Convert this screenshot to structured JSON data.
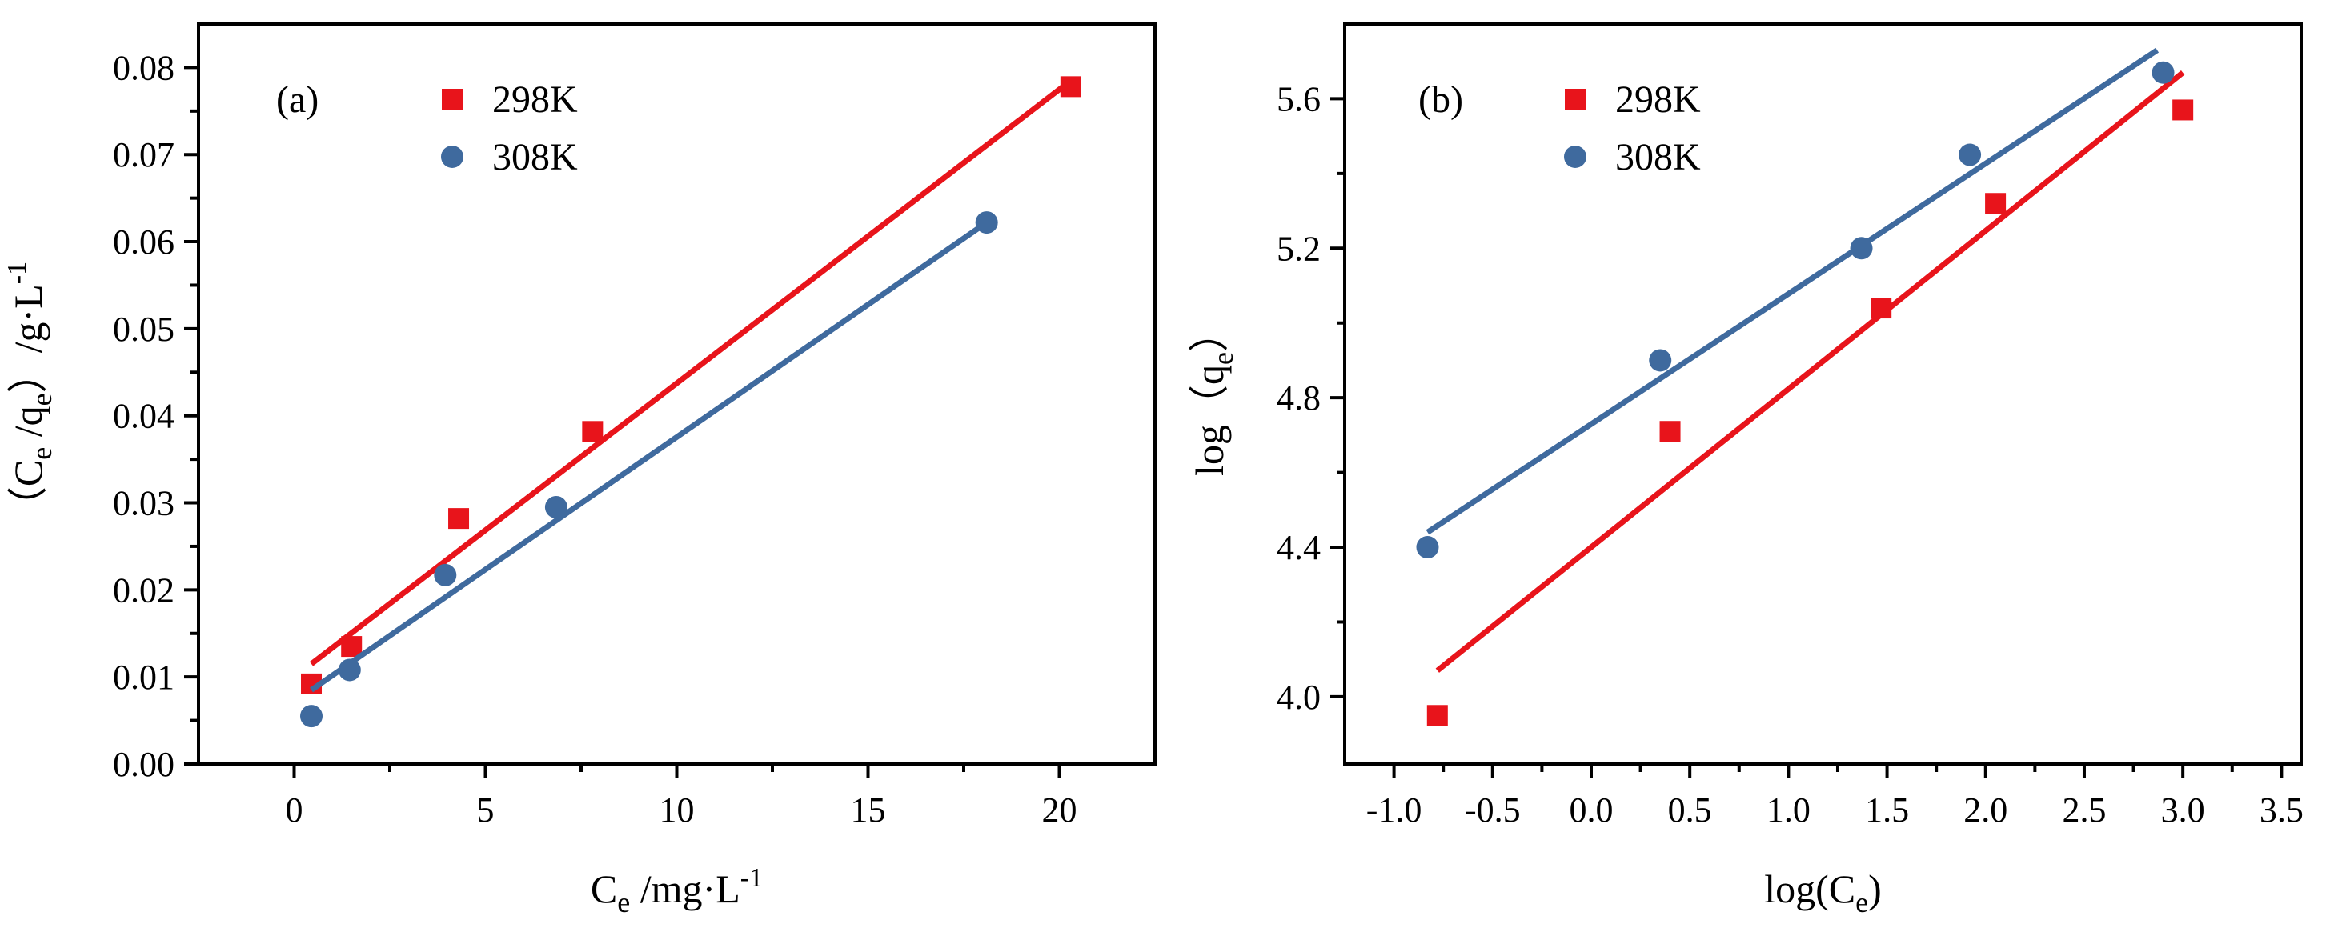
{
  "chart_data": [
    {
      "type": "scatter",
      "panel_label": "(a)",
      "title": "",
      "xlabel": {
        "main": "C",
        "sub": "e",
        "rest": " /mg·L",
        "sup": "-1"
      },
      "ylabel": {
        "open": "（C",
        "sub1": "e",
        "mid": " /q",
        "sub2": "e",
        "close": "）/g·L",
        "sup": "-1"
      },
      "xlim": [
        -2.5,
        22.5
      ],
      "ylim": [
        0.0,
        0.085
      ],
      "xticks": [
        0,
        5,
        10,
        15,
        20
      ],
      "xtick_labels": [
        "0",
        "5",
        "10",
        "15",
        "20"
      ],
      "yticks": [
        0.0,
        0.01,
        0.02,
        0.03,
        0.04,
        0.05,
        0.06,
        0.07,
        0.08
      ],
      "ytick_labels": [
        "0.00",
        "0.01",
        "0.02",
        "0.03",
        "0.04",
        "0.05",
        "0.06",
        "0.07",
        "0.08"
      ],
      "grid": false,
      "legend": "top-left",
      "series": [
        {
          "name": "298K",
          "marker": "square",
          "color": "#e8141b",
          "x": [
            0.45,
            1.5,
            4.3,
            7.8,
            20.3
          ],
          "y": [
            0.0092,
            0.0135,
            0.0282,
            0.0382,
            0.0778
          ],
          "fit": {
            "x": [
              0.45,
              20.3
            ],
            "y": [
              0.0115,
              0.0785
            ]
          }
        },
        {
          "name": "308K",
          "marker": "circle",
          "color": "#3f6a9e",
          "x": [
            0.45,
            1.45,
            3.95,
            6.85,
            18.1
          ],
          "y": [
            0.0055,
            0.0108,
            0.0217,
            0.0295,
            0.0622
          ],
          "fit": {
            "x": [
              0.45,
              18.1
            ],
            "y": [
              0.0085,
              0.0622
            ]
          }
        }
      ]
    },
    {
      "type": "scatter",
      "panel_label": "(b)",
      "title": "",
      "xlabel": {
        "main": "log(C",
        "sub": "e",
        "rest": ")",
        "sup": ""
      },
      "ylabel": {
        "open": "log（q",
        "sub1": "e",
        "mid": "",
        "sub2": "",
        "close": "）",
        "sup": ""
      },
      "xlim": [
        -1.25,
        3.6
      ],
      "ylim": [
        3.82,
        5.8
      ],
      "xticks": [
        -1.0,
        -0.5,
        0.0,
        0.5,
        1.0,
        1.5,
        2.0,
        2.5,
        3.0,
        3.5
      ],
      "xtick_labels": [
        "-1.0",
        "-0.5",
        "0.0",
        "0.5",
        "1.0",
        "1.5",
        "2.0",
        "2.5",
        "3.0",
        "3.5"
      ],
      "yticks": [
        4.0,
        4.4,
        4.8,
        5.2,
        5.6
      ],
      "ytick_labels": [
        "4.0",
        "4.4",
        "4.8",
        "5.2",
        "5.6"
      ],
      "grid": false,
      "legend": "top-left",
      "series": [
        {
          "name": "298K",
          "marker": "square",
          "color": "#e8141b",
          "x": [
            -0.78,
            0.4,
            1.47,
            2.05,
            3.0
          ],
          "y": [
            3.95,
            4.71,
            5.04,
            5.32,
            5.57
          ],
          "fit": {
            "x": [
              -0.78,
              3.0
            ],
            "y": [
              4.07,
              5.67
            ]
          }
        },
        {
          "name": "308K",
          "marker": "circle",
          "color": "#3f6a9e",
          "x": [
            -0.83,
            0.35,
            1.37,
            1.92,
            2.9
          ],
          "y": [
            4.4,
            4.9,
            5.2,
            5.45,
            5.67
          ],
          "fit": {
            "x": [
              -0.83,
              2.87
            ],
            "y": [
              4.44,
              5.73
            ]
          }
        }
      ]
    }
  ]
}
